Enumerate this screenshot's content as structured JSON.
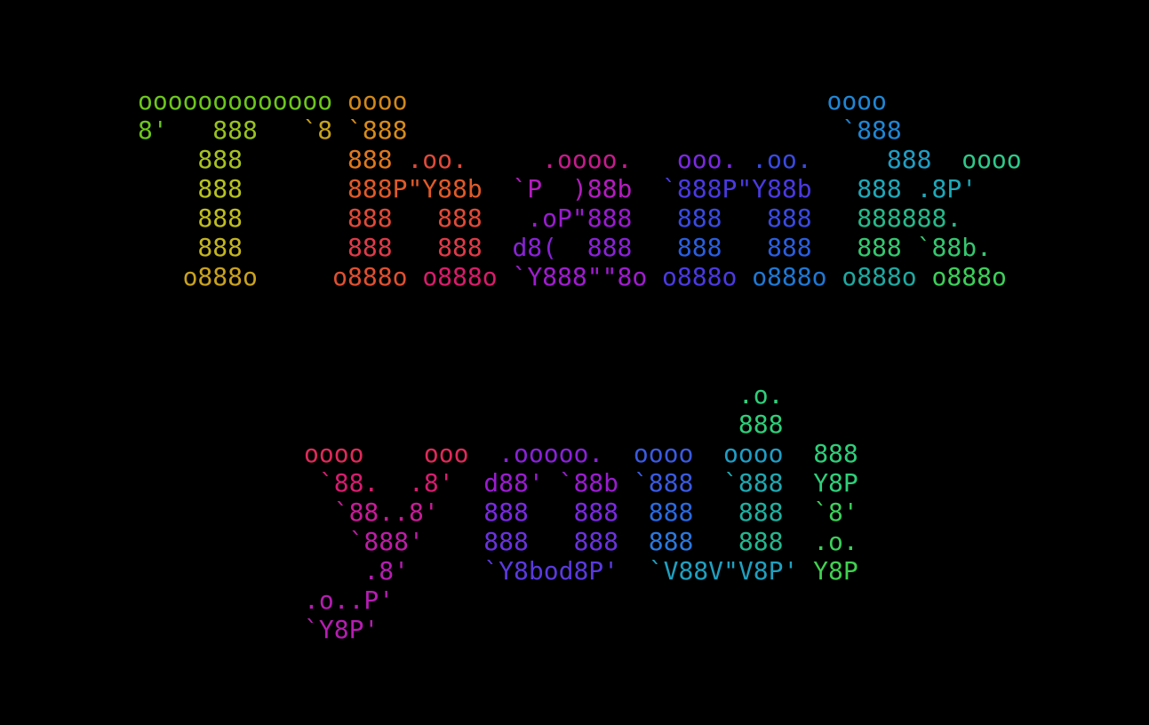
{
  "terminal": {
    "background": "#000000",
    "banners": [
      {
        "id": "banner-thank",
        "lines": [
          [
            [
              "ooooooooooooo ",
              "#6cc61c"
            ],
            [
              "oooo",
              "#d1881a"
            ],
            [
              "                            ",
              "#000000"
            ],
            [
              "oooo",
              "#1f86d4"
            ]
          ],
          [
            [
              "8'",
              "#6cc61c"
            ],
            [
              "   888   ",
              "#99c21f"
            ],
            [
              "`8 ",
              "#c5a31c"
            ],
            [
              "`888",
              "#d88c1a"
            ],
            [
              "                             ",
              "#000000"
            ],
            [
              "`888",
              "#1f86d4"
            ]
          ],
          [
            [
              "    888       ",
              "#a8c21f"
            ],
            [
              "888 ",
              "#e0781d"
            ],
            [
              ".oo.   ",
              "#e04a3a"
            ],
            [
              "  .oooo.   ",
              "#c61c8c"
            ],
            [
              "ooo. ",
              "#7a2ae0"
            ],
            [
              ".oo.    ",
              "#3a4ae0"
            ],
            [
              " 888  ",
              "#1f9ec5"
            ],
            [
              "oooo",
              "#2ec98a"
            ]
          ],
          [
            [
              "    888       ",
              "#b7c21f"
            ],
            [
              "888P\"Y88b  ",
              "#e05a28"
            ],
            [
              "`P  )88b  ",
              "#b41cc0"
            ],
            [
              "`888P\"Y88b   ",
              "#4a3ae0"
            ],
            [
              "888 .8P'",
              "#1fa8b8"
            ]
          ],
          [
            [
              "    888       ",
              "#bfbd1f"
            ],
            [
              "888   888  ",
              "#e04a38"
            ],
            [
              " .oP\"888   ",
              "#9a1cd0"
            ],
            [
              "888   888   ",
              "#3a4ae0"
            ],
            [
              "888888.",
              "#28b88a"
            ]
          ],
          [
            [
              "    888       ",
              "#c4b51f"
            ],
            [
              "888   888  ",
              "#e03a48"
            ],
            [
              "d8(  888   ",
              "#8a22d8"
            ],
            [
              "888   888   ",
              "#2a5ee0"
            ],
            [
              "888 `88b.",
              "#34c870"
            ]
          ],
          [
            [
              "   o888o     ",
              "#c9a21f"
            ],
            [
              "o888o ",
              "#e05030"
            ],
            [
              "o888o ",
              "#d81c6a"
            ],
            [
              "`Y888\"\"8o ",
              "#a01cd0"
            ],
            [
              "o888o ",
              "#4a3ae0"
            ],
            [
              "o888o ",
              "#1f78d4"
            ],
            [
              "o888o ",
              "#1fa8a0"
            ],
            [
              "o888o",
              "#3ccf5a"
            ]
          ]
        ]
      },
      {
        "id": "banner-you",
        "lines": [
          [
            [
              "                             .o.",
              "#2ecf7a"
            ]
          ],
          [
            [
              "                             888",
              "#2ecf7a"
            ]
          ],
          [
            [
              "oooo    ooo  ",
              "#e02a5a"
            ],
            [
              ".ooooo.  ",
              "#8a22d8"
            ],
            [
              "oooo  ",
              "#3a5ae0"
            ],
            [
              "oooo  ",
              "#1f9ec5"
            ],
            [
              "888",
              "#2ecf7a"
            ]
          ],
          [
            [
              " `88.  .8'  ",
              "#d81c70"
            ],
            [
              "d88' `88b ",
              "#9a1cd0"
            ],
            [
              "`888  ",
              "#3a5ae0"
            ],
            [
              "`888  ",
              "#1fa8b0"
            ],
            [
              "Y8P",
              "#2ecf7a"
            ]
          ],
          [
            [
              "  `88..8'   ",
              "#c81c98"
            ],
            [
              "888   888  ",
              "#7a2ae0"
            ],
            [
              "888   ",
              "#2a6ae0"
            ],
            [
              "888  ",
              "#1fb0a0"
            ],
            [
              "`8'",
              "#3ccf5a"
            ]
          ],
          [
            [
              "   `888'    ",
              "#c01ca8"
            ],
            [
              "888   888  ",
              "#6a32e0"
            ],
            [
              "888   ",
              "#2a78e0"
            ],
            [
              "888  ",
              "#22b890"
            ],
            [
              ".o.",
              "#3ccf5a"
            ]
          ],
          [
            [
              "    .8'     ",
              "#b81cb4"
            ],
            [
              "`Y8bod8P'  ",
              "#5a3ae0"
            ],
            [
              "`V88V\"V8P' ",
              "#1fa0c0"
            ],
            [
              "Y8P",
              "#40d050"
            ]
          ],
          [
            [
              ".o..P'",
              "#b81cb4"
            ]
          ],
          [
            [
              "`Y8P'",
              "#b81cb4"
            ]
          ]
        ]
      }
    ]
  }
}
